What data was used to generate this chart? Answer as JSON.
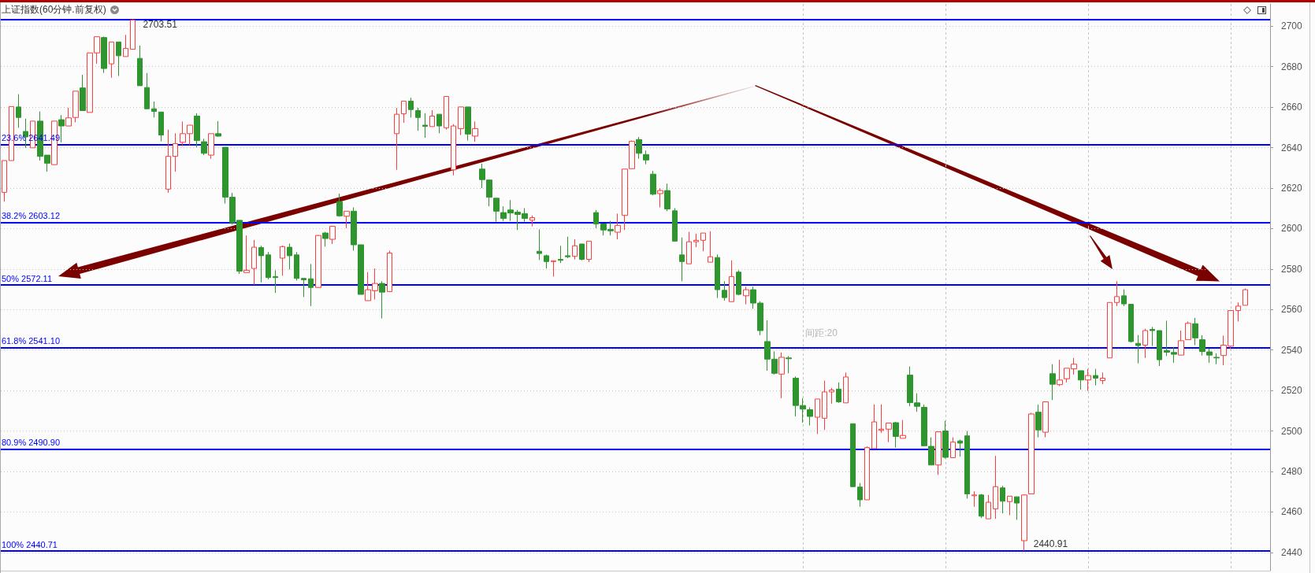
{
  "chart_data": {
    "type": "candlestick",
    "title": "上证指数(60分钟.前复权)",
    "categories": [
      null,
      null,
      null,
      null,
      null,
      null,
      null,
      null,
      null,
      null,
      null,
      null,
      null,
      null,
      null,
      null,
      null,
      null,
      null,
      null,
      null,
      null,
      null,
      null,
      null,
      null,
      null,
      null,
      null,
      null,
      null,
      null,
      null,
      null,
      null,
      null,
      null,
      null,
      null,
      null,
      null,
      null,
      null,
      null,
      null,
      null,
      null,
      null,
      null,
      null,
      null,
      null,
      null,
      null,
      null,
      null,
      null,
      null,
      null,
      null,
      null,
      null,
      null,
      null,
      null,
      null,
      null,
      null,
      null,
      null,
      null,
      null,
      null,
      null,
      null,
      null,
      null,
      null,
      null,
      null,
      null,
      null,
      null,
      null,
      null,
      null,
      null,
      null,
      null,
      null,
      null,
      null,
      null,
      null,
      null,
      null,
      null,
      null,
      null,
      null,
      null,
      null,
      null,
      null,
      null,
      null,
      null,
      null,
      null,
      null,
      null,
      null,
      null,
      null,
      null,
      null,
      null,
      null,
      null,
      null,
      null,
      null,
      null,
      null,
      null,
      null,
      null,
      null,
      null,
      null,
      null,
      null,
      null,
      null,
      null,
      null,
      null,
      null,
      null,
      null,
      null,
      null,
      null,
      null,
      null,
      null,
      null,
      null,
      null,
      null,
      null,
      null,
      null,
      null,
      null,
      null,
      null,
      null,
      null,
      null,
      null,
      null,
      null,
      null,
      null,
      null,
      null,
      null,
      null,
      null,
      null,
      null,
      null,
      null,
      null,
      null,
      null,
      null
    ],
    "ohlc": [
      [
        2617.9,
        2633.6,
        2613.3,
        2633.6
      ],
      [
        2633.6,
        2660.3,
        2633.6,
        2660.3
      ],
      [
        2660.1,
        2666.4,
        2649.8,
        2654.9
      ],
      [
        2648.0,
        2654.3,
        2639.9,
        2645.3
      ],
      [
        2639.9,
        2653.1,
        2639.9,
        2653.1
      ],
      [
        2653.1,
        2657.9,
        2633.6,
        2635.7
      ],
      [
        2636.3,
        2636.3,
        2628.1,
        2632.3
      ],
      [
        2631.6,
        2653.1,
        2631.6,
        2653.1
      ],
      [
        2653.8,
        2656.1,
        2642.6,
        2650.7
      ],
      [
        2650.7,
        2659.7,
        2650.7,
        2654.7
      ],
      [
        2654.9,
        2667.9,
        2652.5,
        2667.9
      ],
      [
        2669.5,
        2676.0,
        2658.3,
        2658.3
      ],
      [
        2657.4,
        2686.8,
        2657.4,
        2686.8
      ],
      [
        2686.8,
        2694.8,
        2681.4,
        2694.8
      ],
      [
        2694.4,
        2694.9,
        2676.9,
        2679.1
      ],
      [
        2681.4,
        2692.2,
        2674.5,
        2692.2
      ],
      [
        2692.2,
        2692.2,
        2675.4,
        2685.4
      ],
      [
        2685.0,
        2695.7,
        2685.0,
        2689.0
      ],
      [
        2688.6,
        2703.51,
        2688.6,
        2703.0
      ],
      [
        2684.1,
        2690.4,
        2670.6,
        2670.6
      ],
      [
        2669.7,
        2676.9,
        2659.2,
        2659.2
      ],
      [
        2659.2,
        2662.8,
        2654.9,
        2657.9
      ],
      [
        2657.6,
        2657.6,
        2643.1,
        2646.2
      ],
      [
        2619.5,
        2648.9,
        2617.7,
        2635.7
      ],
      [
        2635.7,
        2647.1,
        2628.1,
        2642.0
      ],
      [
        2642.6,
        2652.9,
        2640.8,
        2646.9
      ],
      [
        2646.9,
        2651.1,
        2641.2,
        2651.1
      ],
      [
        2655.6,
        2657.0,
        2640.2,
        2643.5
      ],
      [
        2642.9,
        2644.4,
        2636.3,
        2637.2
      ],
      [
        2636.3,
        2646.9,
        2634.5,
        2646.9
      ],
      [
        2646.9,
        2653.1,
        2645.3,
        2645.7
      ],
      [
        2640.2,
        2640.2,
        2612.4,
        2615.5
      ],
      [
        2615.5,
        2617.7,
        2602.0,
        2602.9
      ],
      [
        2604.1,
        2604.1,
        2577.6,
        2579.0
      ],
      [
        2578.3,
        2596.6,
        2578.3,
        2579.4
      ],
      [
        2580.3,
        2594.4,
        2572.2,
        2590.8
      ],
      [
        2590.6,
        2591.5,
        2573.4,
        2586.6
      ],
      [
        2587.0,
        2588.4,
        2574.9,
        2575.8
      ],
      [
        2576.3,
        2579.4,
        2568.2,
        2575.8
      ],
      [
        2585.4,
        2591.7,
        2576.7,
        2591.1
      ],
      [
        2590.8,
        2592.6,
        2579.8,
        2586.6
      ],
      [
        2587.0,
        2588.4,
        2574.3,
        2575.4
      ],
      [
        2575.4,
        2575.4,
        2566.2,
        2574.7
      ],
      [
        2575.2,
        2582.5,
        2561.7,
        2570.9
      ],
      [
        2570.9,
        2596.9,
        2570.9,
        2596.6
      ],
      [
        2597.8,
        2598.4,
        2591.1,
        2595.1
      ],
      [
        2594.7,
        2601.4,
        2592.4,
        2601.1
      ],
      [
        2613.3,
        2617.3,
        2605.9,
        2606.3
      ],
      [
        2606.1,
        2608.6,
        2600.2,
        2608.6
      ],
      [
        2608.6,
        2610.5,
        2589.1,
        2592.0
      ],
      [
        2592.0,
        2592.0,
        2567.5,
        2567.5
      ],
      [
        2564.4,
        2578.5,
        2564.4,
        2569.8
      ],
      [
        2569.3,
        2580.3,
        2565.0,
        2572.9
      ],
      [
        2572.9,
        2574.0,
        2555.6,
        2568.6
      ],
      [
        2568.9,
        2589.1,
        2568.6,
        2587.9
      ],
      [
        2646.9,
        2659.6,
        2629.0,
        2656.5
      ],
      [
        2656.7,
        2663.0,
        2652.3,
        2663.0
      ],
      [
        2663.0,
        2664.6,
        2654.9,
        2658.8
      ],
      [
        2658.3,
        2659.7,
        2648.4,
        2654.9
      ],
      [
        2651.1,
        2657.0,
        2644.9,
        2650.5
      ],
      [
        2650.4,
        2658.5,
        2650.4,
        2655.6
      ],
      [
        2656.5,
        2656.5,
        2647.1,
        2650.7
      ],
      [
        2649.8,
        2665.3,
        2648.9,
        2665.3
      ],
      [
        2629.0,
        2651.6,
        2626.3,
        2650.7
      ],
      [
        2649.4,
        2660.1,
        2646.2,
        2660.1
      ],
      [
        2660.1,
        2660.1,
        2643.5,
        2646.7
      ],
      [
        2645.7,
        2652.9,
        2642.9,
        2649.4
      ],
      [
        2629.4,
        2632.1,
        2620.0,
        2624.2
      ],
      [
        2624.0,
        2624.0,
        2611.0,
        2615.5
      ],
      [
        2615.0,
        2615.0,
        2603.4,
        2608.6
      ],
      [
        2607.9,
        2611.0,
        2603.8,
        2605.0
      ],
      [
        2609.2,
        2614.1,
        2603.8,
        2607.7
      ],
      [
        2608.1,
        2609.2,
        2599.3,
        2607.0
      ],
      [
        2607.4,
        2610.1,
        2603.4,
        2605.0
      ],
      [
        2604.1,
        2606.5,
        2601.1,
        2605.4
      ],
      [
        2588.8,
        2599.6,
        2584.5,
        2587.7
      ],
      [
        2586.6,
        2587.2,
        2580.3,
        2583.7
      ],
      [
        2583.7,
        2584.1,
        2576.3,
        2584.1
      ],
      [
        2584.8,
        2591.5,
        2583.0,
        2584.3
      ],
      [
        2586.6,
        2596.0,
        2585.4,
        2586.1
      ],
      [
        2586.3,
        2594.7,
        2584.8,
        2591.5
      ],
      [
        2592.4,
        2592.4,
        2584.3,
        2584.8
      ],
      [
        2584.8,
        2593.8,
        2583.4,
        2593.8
      ],
      [
        2607.9,
        2609.2,
        2600.2,
        2602.3
      ],
      [
        2602.3,
        2602.3,
        2596.6,
        2599.3
      ],
      [
        2599.6,
        2603.8,
        2596.6,
        2598.9
      ],
      [
        2598.2,
        2607.4,
        2594.7,
        2601.6
      ],
      [
        2606.5,
        2629.4,
        2599.3,
        2629.4
      ],
      [
        2629.6,
        2643.5,
        2629.6,
        2643.1
      ],
      [
        2644.0,
        2645.3,
        2634.5,
        2637.2
      ],
      [
        2636.6,
        2638.6,
        2631.8,
        2633.9
      ],
      [
        2626.9,
        2628.5,
        2616.4,
        2617.0
      ],
      [
        2617.3,
        2620.0,
        2610.5,
        2618.8
      ],
      [
        2618.8,
        2622.2,
        2608.6,
        2609.7
      ],
      [
        2608.8,
        2610.1,
        2593.8,
        2593.8
      ],
      [
        2587.0,
        2595.6,
        2574.0,
        2583.7
      ],
      [
        2582.6,
        2598.4,
        2582.6,
        2593.5
      ],
      [
        2593.5,
        2597.5,
        2590.8,
        2594.2
      ],
      [
        2594.2,
        2597.8,
        2588.8,
        2597.8
      ],
      [
        2583.4,
        2598.7,
        2583.4,
        2586.1
      ],
      [
        2585.7,
        2587.2,
        2565.7,
        2569.8
      ],
      [
        2569.5,
        2574.0,
        2564.4,
        2565.9
      ],
      [
        2563.9,
        2584.3,
        2563.9,
        2576.3
      ],
      [
        2578.5,
        2579.4,
        2567.1,
        2567.5
      ],
      [
        2566.8,
        2571.3,
        2562.6,
        2569.8
      ],
      [
        2569.8,
        2571.3,
        2560.4,
        2563.2
      ],
      [
        2563.2,
        2564.1,
        2547.3,
        2549.6
      ],
      [
        2544.2,
        2554.7,
        2529.8,
        2535.5
      ],
      [
        2535.5,
        2539.3,
        2527.9,
        2528.5
      ],
      [
        2528.1,
        2538.8,
        2516.2,
        2536.4
      ],
      [
        2536.1,
        2537.0,
        2528.5,
        2535.7
      ],
      [
        2526.1,
        2527.0,
        2507.2,
        2512.6
      ],
      [
        2512.6,
        2516.2,
        2504.1,
        2510.8
      ],
      [
        2510.5,
        2511.7,
        2502.7,
        2507.2
      ],
      [
        2506.8,
        2515.8,
        2498.5,
        2515.8
      ],
      [
        2506.3,
        2524.9,
        2500.5,
        2519.3
      ],
      [
        2519.3,
        2521.3,
        2513.5,
        2520.2
      ],
      [
        2520.7,
        2524.0,
        2513.9,
        2514.4
      ],
      [
        2513.9,
        2528.9,
        2513.9,
        2526.7
      ],
      [
        2503.6,
        2503.6,
        2472.5,
        2472.5
      ],
      [
        2472.3,
        2474.3,
        2462.6,
        2466.0
      ],
      [
        2466.0,
        2492.4,
        2466.0,
        2491.8
      ],
      [
        2491.3,
        2513.1,
        2491.3,
        2504.5
      ],
      [
        2500.3,
        2513.1,
        2499.1,
        2500.9
      ],
      [
        2500.9,
        2503.9,
        2494.5,
        2503.9
      ],
      [
        2504.1,
        2504.5,
        2491.8,
        2497.3
      ],
      [
        2496.4,
        2505.4,
        2496.4,
        2497.8
      ],
      [
        2527.6,
        2531.9,
        2512.2,
        2514.0
      ],
      [
        2513.9,
        2518.6,
        2509.5,
        2512.2
      ],
      [
        2511.7,
        2513.0,
        2492.7,
        2492.7
      ],
      [
        2492.4,
        2496.9,
        2483.2,
        2483.2
      ],
      [
        2483.2,
        2499.6,
        2478.3,
        2499.6
      ],
      [
        2500.0,
        2505.0,
        2486.4,
        2487.0
      ],
      [
        2486.8,
        2496.9,
        2486.8,
        2494.5
      ],
      [
        2495.1,
        2495.8,
        2487.3,
        2494.0
      ],
      [
        2497.6,
        2500.0,
        2466.6,
        2468.9
      ],
      [
        2468.0,
        2470.2,
        2462.6,
        2468.4
      ],
      [
        2468.4,
        2468.9,
        2457.0,
        2457.9
      ],
      [
        2456.6,
        2468.4,
        2456.6,
        2464.8
      ],
      [
        2461.5,
        2487.7,
        2456.6,
        2472.5
      ],
      [
        2471.9,
        2472.9,
        2459.3,
        2465.3
      ],
      [
        2465.1,
        2467.8,
        2458.4,
        2467.8
      ],
      [
        2467.5,
        2467.5,
        2456.1,
        2464.4
      ],
      [
        2445.8,
        2468.7,
        2440.91,
        2468.4
      ],
      [
        2468.9,
        2509.0,
        2468.9,
        2508.4
      ],
      [
        2509.3,
        2513.0,
        2496.9,
        2500.5
      ],
      [
        2499.4,
        2514.4,
        2496.9,
        2514.4
      ],
      [
        2528.3,
        2533.0,
        2515.3,
        2523.1
      ],
      [
        2522.9,
        2535.2,
        2522.2,
        2525.2
      ],
      [
        2525.8,
        2531.0,
        2524.0,
        2531.0
      ],
      [
        2530.7,
        2536.1,
        2527.9,
        2533.0
      ],
      [
        2529.8,
        2529.8,
        2520.4,
        2525.2
      ],
      [
        2525.2,
        2530.7,
        2519.8,
        2527.4
      ],
      [
        2527.4,
        2530.7,
        2522.5,
        2526.1
      ],
      [
        2524.9,
        2528.9,
        2523.1,
        2526.1
      ],
      [
        2536.1,
        2563.5,
        2536.1,
        2563.5
      ],
      [
        2563.5,
        2574.0,
        2561.7,
        2566.4
      ],
      [
        2566.8,
        2570.0,
        2561.7,
        2562.8
      ],
      [
        2562.6,
        2562.6,
        2543.7,
        2544.2
      ],
      [
        2543.3,
        2547.4,
        2533.4,
        2542.2
      ],
      [
        2542.4,
        2550.5,
        2536.1,
        2549.6
      ],
      [
        2550.2,
        2551.4,
        2542.0,
        2549.6
      ],
      [
        2549.6,
        2549.6,
        2532.1,
        2535.2
      ],
      [
        2539.7,
        2554.5,
        2537.0,
        2538.9
      ],
      [
        2538.8,
        2541.5,
        2533.7,
        2537.9
      ],
      [
        2537.5,
        2549.6,
        2537.5,
        2544.6
      ],
      [
        2545.1,
        2554.1,
        2545.1,
        2553.2
      ],
      [
        2553.0,
        2555.9,
        2542.4,
        2546.0
      ],
      [
        2545.1,
        2547.3,
        2537.3,
        2539.3
      ],
      [
        2539.1,
        2540.6,
        2533.7,
        2537.5
      ],
      [
        2536.4,
        2538.4,
        2533.0,
        2536.1
      ],
      [
        2537.3,
        2547.1,
        2532.5,
        2542.4
      ],
      [
        2541.9,
        2559.5,
        2540.6,
        2559.5
      ],
      [
        2559.5,
        2563.5,
        2554.1,
        2561.7
      ],
      [
        2562.1,
        2570.4,
        2562.1,
        2569.8
      ],
      null,
      null,
      null
    ],
    "colors": [
      "#ff3b3b",
      "#ff3b3b",
      "#2f962f",
      "#2f962f",
      "#ff3b3b",
      "#2f962f",
      "#2f962f",
      "#ff3b3b",
      "#2f962f",
      "#ff3b3b",
      "#ff3b3b",
      "#2f962f",
      "#ff3b3b",
      "#ff3b3b",
      "#2f962f",
      "#ff3b3b",
      "#2f962f",
      "#ff3b3b",
      "#ff3b3b",
      "#2f962f",
      "#2f962f",
      "#2f962f",
      "#2f962f",
      "#ff3b3b",
      "#ff3b3b",
      "#ff3b3b",
      "#ff3b3b",
      "#2f962f",
      "#2f962f",
      "#ff3b3b",
      "#2f962f",
      "#2f962f",
      "#2f962f",
      "#2f962f",
      "#ff3b3b",
      "#ff3b3b",
      "#2f962f",
      "#2f962f",
      "#2f962f",
      "#ff3b3b",
      "#2f962f",
      "#2f962f",
      "#2f962f",
      "#2f962f",
      "#ff3b3b",
      "#2f962f",
      "#ff3b3b",
      "#2f962f",
      "#ff3b3b",
      "#2f962f",
      "#2f962f",
      "#ff3b3b",
      "#ff3b3b",
      "#2f962f",
      "#ff3b3b",
      "#ff3b3b",
      "#ff3b3b",
      "#2f962f",
      "#2f962f",
      "#2f962f",
      "#ff3b3b",
      "#2f962f",
      "#ff3b3b",
      "#ff3b3b",
      "#ff3b3b",
      "#2f962f",
      "#ff3b3b",
      "#2f962f",
      "#2f962f",
      "#2f962f",
      "#2f962f",
      "#2f962f",
      "#2f962f",
      "#2f962f",
      "#ff3b3b",
      "#2f962f",
      "#2f962f",
      "#ff3b3b",
      "#2f962f",
      "#2f962f",
      "#ff3b3b",
      "#2f962f",
      "#ff3b3b",
      "#2f962f",
      "#2f962f",
      "#2f962f",
      "#ff3b3b",
      "#ff3b3b",
      "#ff3b3b",
      "#2f962f",
      "#2f962f",
      "#2f962f",
      "#ff3b3b",
      "#2f962f",
      "#2f962f",
      "#2f962f",
      "#ff3b3b",
      "#ff3b3b",
      "#ff3b3b",
      "#ff3b3b",
      "#2f962f",
      "#2f962f",
      "#ff3b3b",
      "#2f962f",
      "#ff3b3b",
      "#2f962f",
      "#2f962f",
      "#2f962f",
      "#2f962f",
      "#ff3b3b",
      "#2f962f",
      "#2f962f",
      "#2f962f",
      "#2f962f",
      "#ff3b3b",
      "#ff3b3b",
      "#ff3b3b",
      "#2f962f",
      "#ff3b3b",
      "#2f962f",
      "#2f962f",
      "#ff3b3b",
      "#ff3b3b",
      "#ff3b3b",
      "#ff3b3b",
      "#2f962f",
      "#ff3b3b",
      "#2f962f",
      "#2f962f",
      "#2f962f",
      "#2f962f",
      "#ff3b3b",
      "#2f962f",
      "#ff3b3b",
      "#2f962f",
      "#2f962f",
      "#ff3b3b",
      "#2f962f",
      "#ff3b3b",
      "#ff3b3b",
      "#2f962f",
      "#ff3b3b",
      "#2f962f",
      "#ff3b3b",
      "#ff3b3b",
      "#2f962f",
      "#ff3b3b",
      "#2f962f",
      "#ff3b3b",
      "#ff3b3b",
      "#ff3b3b",
      "#2f962f",
      "#ff3b3b",
      "#2f962f",
      "#ff3b3b",
      "#ff3b3b",
      "#ff3b3b",
      "#2f962f",
      "#2f962f",
      "#2f962f",
      "#ff3b3b",
      "#2f962f",
      "#2f962f",
      "#2f962f",
      "#2f962f",
      "#ff3b3b",
      "#ff3b3b",
      "#2f962f",
      "#2f962f",
      "#2f962f",
      "#2f962f",
      "#ff3b3b",
      "#ff3b3b",
      "#ff3b3b",
      "#ff3b3b",
      null,
      null,
      null
    ],
    "ylim": [
      2431,
      2711
    ],
    "yticks": [
      2440,
      2460,
      2480,
      2500,
      2520,
      2540,
      2560,
      2580,
      2600,
      2620,
      2640,
      2660,
      2680,
      2700
    ],
    "grid": "y",
    "tick_labels": "y",
    "ref_lines": [
      {
        "axis": "y",
        "value": 2703.51,
        "color": "#0000ff"
      },
      {
        "axis": "y",
        "value": 2641.49,
        "label": "23.6% 2641.49",
        "color": "#0000ff"
      },
      {
        "axis": "y",
        "value": 2603.12,
        "label": "38.2% 2603.12",
        "color": "#0000ff"
      },
      {
        "axis": "y",
        "value": 2572.11,
        "label": "50% 2572.11",
        "color": "#0000ff"
      },
      {
        "axis": "y",
        "value": 2541.1,
        "label": "61.8% 2541.10",
        "color": "#0000ff"
      },
      {
        "axis": "y",
        "value": 2490.9,
        "label": "80.9% 2490.90",
        "color": "#0000ff"
      },
      {
        "axis": "y",
        "value": 2440.71,
        "label": "100% 2440.71",
        "color": "#0000ff"
      }
    ],
    "annotations": [
      "2703.51",
      "2440.91",
      "间距:20"
    ]
  }
}
